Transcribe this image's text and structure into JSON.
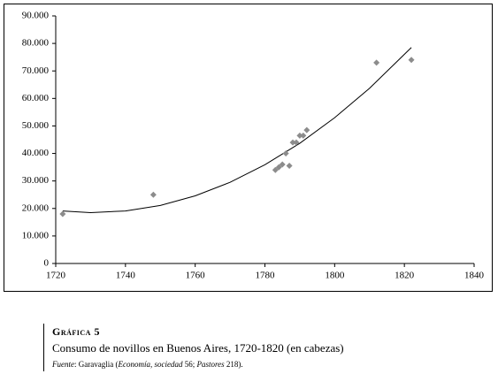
{
  "chart_data": {
    "type": "scatter",
    "x": [
      1722,
      1748,
      1783,
      1784,
      1785,
      1786,
      1787,
      1788,
      1789,
      1790,
      1791,
      1792,
      1812,
      1822
    ],
    "values": [
      18000,
      25000,
      34000,
      35000,
      36000,
      40000,
      35500,
      44000,
      44000,
      46500,
      46500,
      48500,
      73000,
      74000
    ],
    "color": "#8c8c8c",
    "trendline": {
      "x": [
        1722,
        1730,
        1740,
        1750,
        1760,
        1770,
        1780,
        1790,
        1800,
        1810,
        1822
      ],
      "values": [
        19100,
        18500,
        19100,
        21100,
        24600,
        29500,
        35900,
        43700,
        53000,
        63700,
        78500
      ],
      "color": "#000000"
    },
    "xlim": [
      1720,
      1840
    ],
    "xticks": [
      1720,
      1740,
      1760,
      1780,
      1800,
      1820,
      1840
    ],
    "ylim": [
      0,
      90000
    ],
    "yticks": [
      0,
      {
        "value": 10000,
        "label": "10.000"
      },
      {
        "value": 20000,
        "label": "20.000"
      },
      {
        "value": 30000,
        "label": "30.000"
      },
      {
        "value": 40000,
        "label": "40.000"
      },
      {
        "value": 50000,
        "label": "50.000"
      },
      {
        "value": 60000,
        "label": "60.000"
      },
      {
        "value": 70000,
        "label": "70.000"
      },
      {
        "value": 80000,
        "label": "80.000"
      },
      {
        "value": 90000,
        "label": "90.000"
      }
    ],
    "grid": false
  },
  "caption": {
    "label": "Gráfica 5",
    "title": "Consumo de novillos en Buenos Aires, 1720-1820 (en cabezas)",
    "source": [
      "Fuente",
      ": Garavaglia (",
      "Economía, sociedad",
      " 56; ",
      "Pastores",
      " 218)."
    ]
  }
}
